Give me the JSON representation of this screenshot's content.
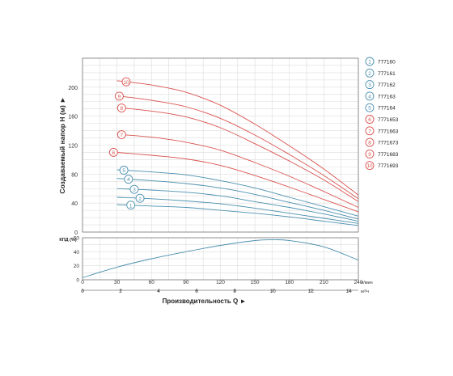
{
  "chart_data": [
    {
      "type": "line",
      "ylabel": "Создаваемый напор H (м) ►",
      "xlim": [
        0,
        240
      ],
      "ylim": [
        0,
        240
      ],
      "yticks": [
        0,
        40,
        80,
        120,
        160,
        200
      ],
      "x": [
        30,
        60,
        90,
        120,
        150,
        180,
        210,
        240
      ],
      "grid": true,
      "legend_position": "right",
      "series": [
        {
          "name": "777160",
          "number": "1",
          "color": "#4a8fae",
          "values": [
            38,
            36,
            34,
            30,
            26,
            21,
            15,
            9
          ]
        },
        {
          "name": "777161",
          "number": "2",
          "color": "#4a8fae",
          "values": [
            48,
            46,
            43,
            39,
            33,
            26,
            19,
            12
          ]
        },
        {
          "name": "777162",
          "number": "3",
          "color": "#4a8fae",
          "values": [
            60,
            58,
            55,
            50,
            42,
            34,
            25,
            15
          ]
        },
        {
          "name": "777163",
          "number": "4",
          "color": "#4a8fae",
          "values": [
            74,
            71,
            67,
            61,
            52,
            41,
            30,
            18
          ]
        },
        {
          "name": "777164",
          "number": "5",
          "color": "#4a8fae",
          "values": [
            86,
            83,
            79,
            71,
            61,
            48,
            35,
            22
          ]
        },
        {
          "name": "7771653",
          "number": "6",
          "color": "#d9534f",
          "values": [
            110,
            106,
            101,
            92,
            78,
            62,
            45,
            28
          ]
        },
        {
          "name": "7771663",
          "number": "7",
          "color": "#d9534f",
          "values": [
            135,
            131,
            124,
            113,
            96,
            77,
            56,
            34
          ]
        },
        {
          "name": "7771673",
          "number": "8",
          "color": "#d9534f",
          "values": [
            172,
            167,
            159,
            144,
            122,
            98,
            72,
            42
          ]
        },
        {
          "name": "7771683",
          "number": "9",
          "color": "#d9534f",
          "values": [
            188,
            182,
            173,
            157,
            134,
            107,
            78,
            46
          ]
        },
        {
          "name": "7771693",
          "number": "10",
          "color": "#d9534f",
          "values": [
            209,
            203,
            193,
            175,
            149,
            119,
            87,
            51
          ]
        }
      ]
    },
    {
      "type": "line",
      "ylabel": "КПД (%)",
      "xlabel": "Производительность Q ►",
      "xlim": [
        0,
        240
      ],
      "ylim": [
        0,
        60
      ],
      "yticks": [
        0,
        20,
        40,
        60
      ],
      "x_ticks": [
        0,
        30,
        60,
        90,
        120,
        150,
        180,
        210,
        240
      ],
      "x_unit": "л/мин",
      "x2_ticks": [
        "0",
        "2",
        "4",
        "6",
        "8",
        "10",
        "12",
        "14"
      ],
      "x2_unit": "м³/ч",
      "grid": true,
      "color": "#4a8fae",
      "x": [
        0,
        30,
        60,
        90,
        120,
        150,
        165,
        180,
        210,
        240
      ],
      "values": [
        3,
        18,
        30,
        40,
        49,
        56,
        57,
        56,
        47,
        28
      ]
    }
  ]
}
